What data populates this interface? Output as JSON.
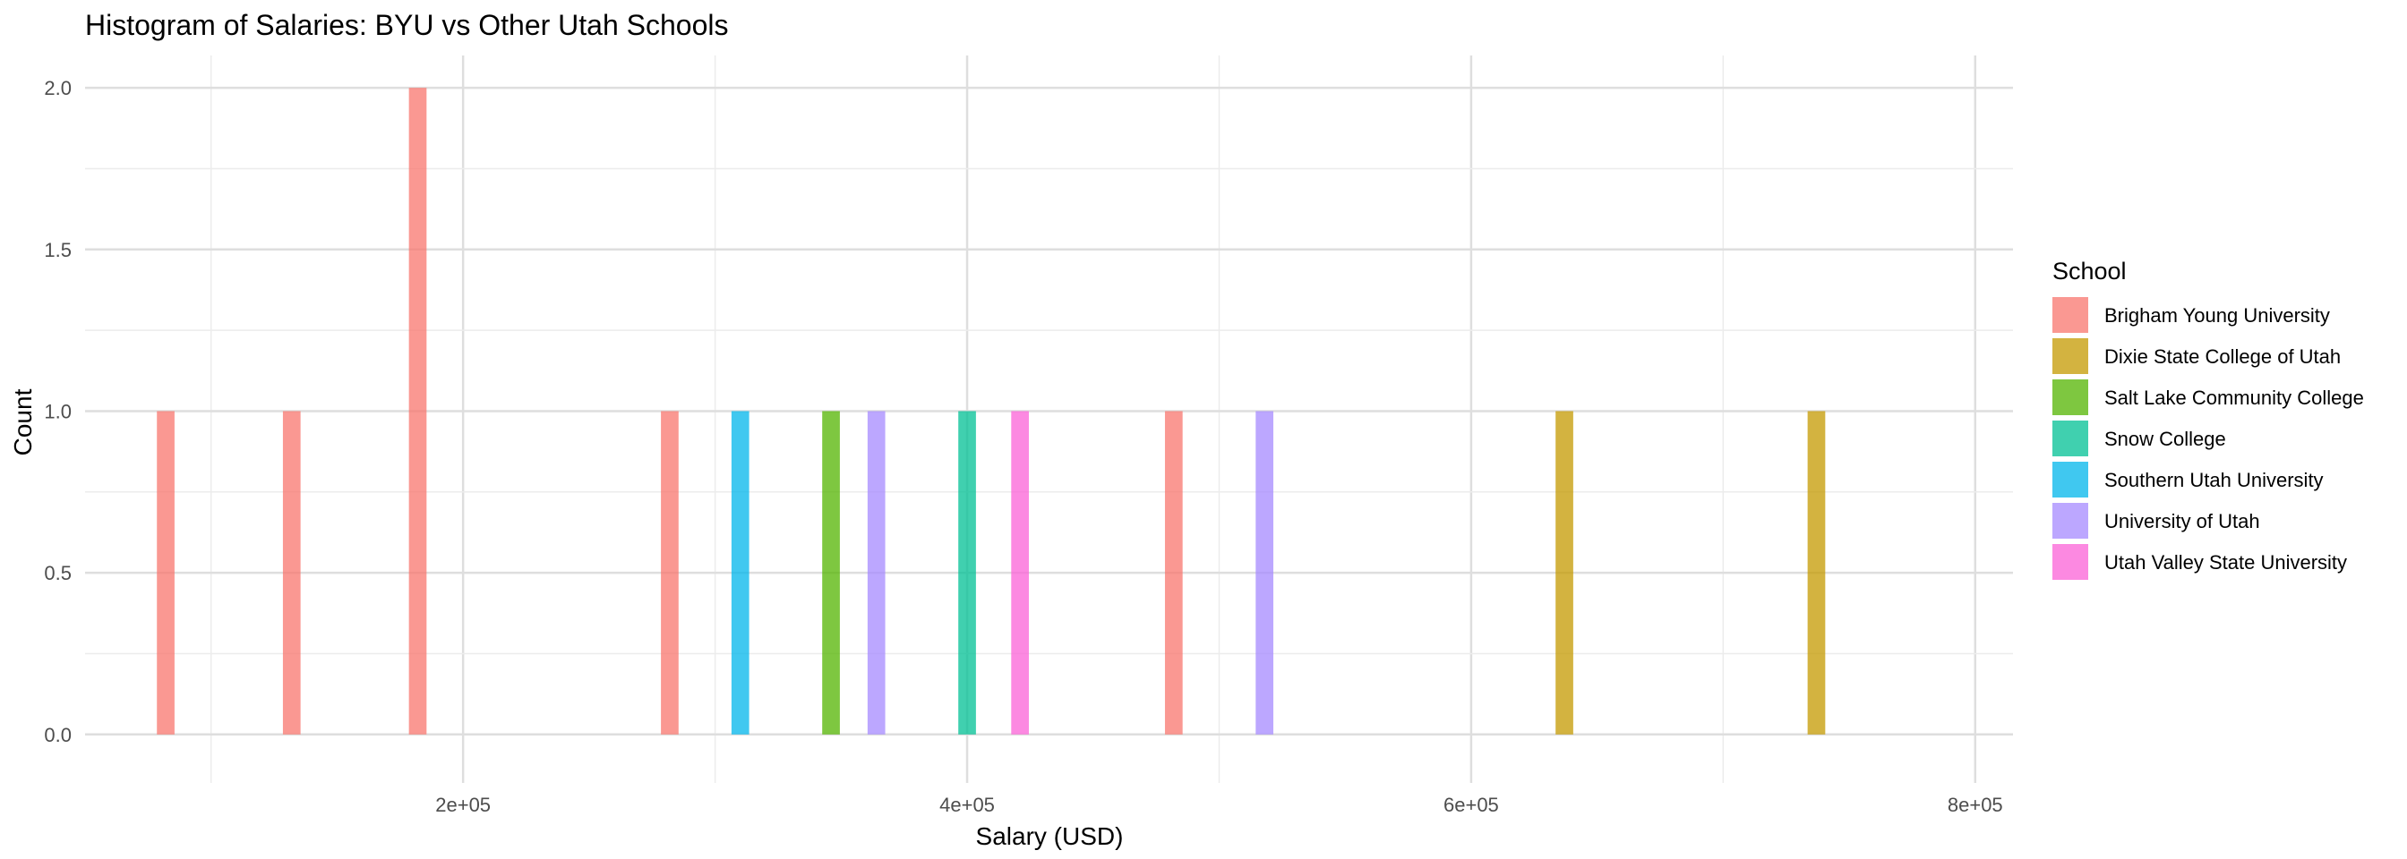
{
  "chart_data": {
    "type": "bar",
    "subtype": "histogram",
    "title": "Histogram of Salaries: BYU vs Other Utah Schools",
    "xlabel": "Salary (USD)",
    "ylabel": "Count",
    "xlim": [
      50000,
      815000
    ],
    "ylim": [
      -0.15,
      2.1
    ],
    "x_ticks": [
      200000,
      400000,
      600000,
      800000
    ],
    "x_tick_labels": [
      "2e+05",
      "4e+05",
      "6e+05",
      "8e+05"
    ],
    "y_ticks": [
      0,
      0.5,
      1,
      1.5,
      2
    ],
    "y_tick_labels": [
      "0.0",
      "0.5",
      "1.0",
      "1.5",
      "2.0"
    ],
    "grid": true,
    "bin_width": 7000,
    "legend": {
      "title": "School",
      "position": "right"
    },
    "series": [
      {
        "name": "Brigham Young University",
        "color": "#F8766D",
        "bins": [
          {
            "x": 82000,
            "count": 1
          },
          {
            "x": 132000,
            "count": 1
          },
          {
            "x": 182000,
            "count": 2
          },
          {
            "x": 282000,
            "count": 1
          },
          {
            "x": 482000,
            "count": 1
          }
        ]
      },
      {
        "name": "Dixie State College of Utah",
        "color": "#C49A00",
        "bins": [
          {
            "x": 637000,
            "count": 1
          },
          {
            "x": 737000,
            "count": 1
          }
        ]
      },
      {
        "name": "Salt Lake Community College",
        "color": "#53B400",
        "bins": [
          {
            "x": 346000,
            "count": 1
          }
        ]
      },
      {
        "name": "Snow College",
        "color": "#00C094",
        "bins": [
          {
            "x": 400000,
            "count": 1
          }
        ]
      },
      {
        "name": "Southern Utah University",
        "color": "#00B6EB",
        "bins": [
          {
            "x": 310000,
            "count": 1
          }
        ]
      },
      {
        "name": "University of Utah",
        "color": "#A58AFF",
        "bins": [
          {
            "x": 364000,
            "count": 1
          },
          {
            "x": 518000,
            "count": 1
          }
        ]
      },
      {
        "name": "Utah Valley State University",
        "color": "#FB61D7",
        "bins": [
          {
            "x": 421000,
            "count": 1
          }
        ]
      }
    ]
  }
}
